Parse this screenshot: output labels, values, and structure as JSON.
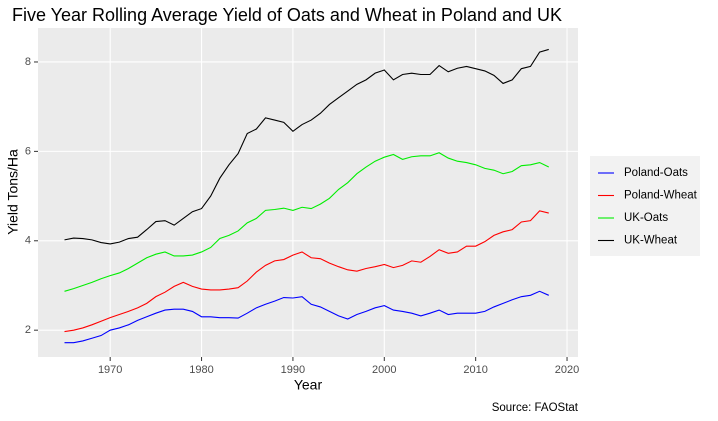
{
  "chart_data": {
    "type": "line",
    "title": "Five Year Rolling Average Yield of Oats and Wheat in Poland and UK",
    "x_label": "Year",
    "y_label": "Yield Tons/Ha",
    "caption": "Source: FAOStat",
    "x": [
      1965,
      1966,
      1967,
      1968,
      1969,
      1970,
      1971,
      1972,
      1973,
      1974,
      1975,
      1976,
      1977,
      1978,
      1979,
      1980,
      1981,
      1982,
      1983,
      1984,
      1985,
      1986,
      1987,
      1988,
      1989,
      1990,
      1991,
      1992,
      1993,
      1994,
      1995,
      1996,
      1997,
      1998,
      1999,
      2000,
      2001,
      2002,
      2003,
      2004,
      2005,
      2006,
      2007,
      2008,
      2009,
      2010,
      2011,
      2012,
      2013,
      2014,
      2015,
      2016,
      2017,
      2018
    ],
    "series": [
      {
        "name": "Poland-Oats",
        "color": "#0000ff",
        "values": [
          1.72,
          1.72,
          1.76,
          1.82,
          1.88,
          2.0,
          2.05,
          2.12,
          2.22,
          2.3,
          2.38,
          2.45,
          2.47,
          2.47,
          2.42,
          2.3,
          2.3,
          2.28,
          2.28,
          2.27,
          2.38,
          2.5,
          2.58,
          2.65,
          2.73,
          2.72,
          2.75,
          2.58,
          2.52,
          2.42,
          2.32,
          2.25,
          2.35,
          2.42,
          2.5,
          2.55,
          2.45,
          2.42,
          2.38,
          2.32,
          2.38,
          2.45,
          2.35,
          2.38,
          2.38,
          2.38,
          2.42,
          2.52,
          2.6,
          2.68,
          2.75,
          2.78,
          2.87,
          2.78
        ]
      },
      {
        "name": "Poland-Wheat",
        "color": "#ff0000",
        "values": [
          1.97,
          2.0,
          2.05,
          2.12,
          2.2,
          2.28,
          2.35,
          2.42,
          2.5,
          2.6,
          2.75,
          2.85,
          2.98,
          3.07,
          2.98,
          2.92,
          2.9,
          2.9,
          2.92,
          2.95,
          3.1,
          3.3,
          3.45,
          3.55,
          3.58,
          3.68,
          3.75,
          3.62,
          3.6,
          3.5,
          3.42,
          3.35,
          3.32,
          3.38,
          3.42,
          3.47,
          3.4,
          3.45,
          3.55,
          3.52,
          3.65,
          3.8,
          3.72,
          3.75,
          3.88,
          3.88,
          3.98,
          4.12,
          4.2,
          4.25,
          4.42,
          4.45,
          4.67,
          4.62
        ]
      },
      {
        "name": "UK-Oats",
        "color": "#00ee00",
        "values": [
          2.87,
          2.93,
          3.0,
          3.07,
          3.15,
          3.22,
          3.28,
          3.38,
          3.5,
          3.62,
          3.7,
          3.75,
          3.66,
          3.66,
          3.68,
          3.75,
          3.85,
          4.05,
          4.12,
          4.22,
          4.4,
          4.5,
          4.68,
          4.7,
          4.73,
          4.68,
          4.75,
          4.72,
          4.82,
          4.95,
          5.15,
          5.3,
          5.5,
          5.65,
          5.78,
          5.87,
          5.93,
          5.82,
          5.88,
          5.9,
          5.9,
          5.97,
          5.85,
          5.78,
          5.75,
          5.7,
          5.62,
          5.58,
          5.5,
          5.55,
          5.68,
          5.7,
          5.75,
          5.65
        ]
      },
      {
        "name": "UK-Wheat",
        "color": "#000000",
        "values": [
          4.02,
          4.06,
          4.05,
          4.02,
          3.96,
          3.93,
          3.97,
          4.05,
          4.08,
          4.25,
          4.43,
          4.45,
          4.35,
          4.5,
          4.65,
          4.72,
          5.0,
          5.4,
          5.7,
          5.95,
          6.4,
          6.5,
          6.75,
          6.7,
          6.65,
          6.45,
          6.6,
          6.7,
          6.85,
          7.05,
          7.2,
          7.35,
          7.5,
          7.6,
          7.75,
          7.82,
          7.6,
          7.72,
          7.75,
          7.72,
          7.72,
          7.92,
          7.78,
          7.86,
          7.9,
          7.85,
          7.8,
          7.7,
          7.52,
          7.6,
          7.85,
          7.9,
          8.22,
          8.28
        ]
      }
    ],
    "xlim": [
      1962.1,
      2021.2
    ],
    "xticks": [
      1970,
      1980,
      1990,
      2000,
      2010,
      2020
    ],
    "ylim": [
      1.4,
      8.76
    ],
    "yticks": [
      2,
      4,
      6,
      8
    ],
    "grid": true,
    "legend_position": "right"
  }
}
